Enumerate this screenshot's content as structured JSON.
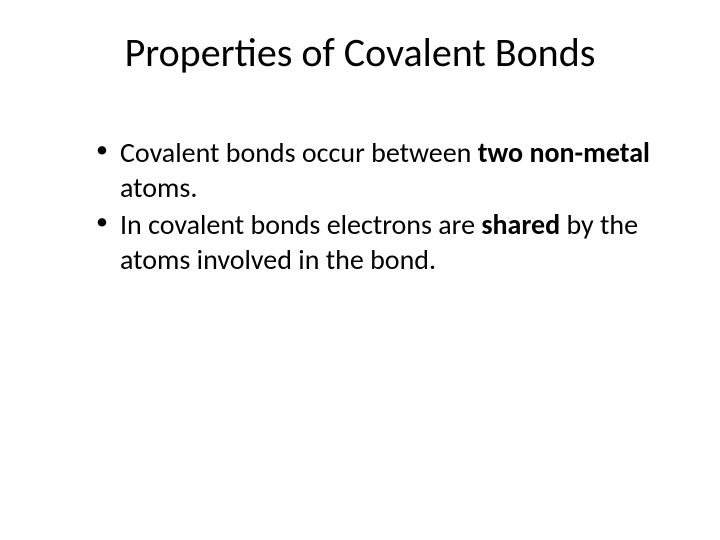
{
  "slide": {
    "title": "Properties of Covalent Bonds",
    "bullets": [
      {
        "text_parts": [
          {
            "text": "Covalent bonds occur between ",
            "bold": false
          },
          {
            "text": "two non-metal",
            "bold": true
          },
          {
            "text": " atoms.",
            "bold": false
          }
        ]
      },
      {
        "text_parts": [
          {
            "text": "In covalent bonds electrons are ",
            "bold": false
          },
          {
            "text": "shared",
            "bold": true
          },
          {
            "text": " by the atoms involved in the bond.",
            "bold": false
          }
        ]
      }
    ],
    "colors": {
      "background": "#ffffff",
      "text": "#000000"
    },
    "typography": {
      "title_fontsize": 40,
      "title_weight": 400,
      "body_fontsize": 28,
      "font_family": "Calibri"
    }
  }
}
